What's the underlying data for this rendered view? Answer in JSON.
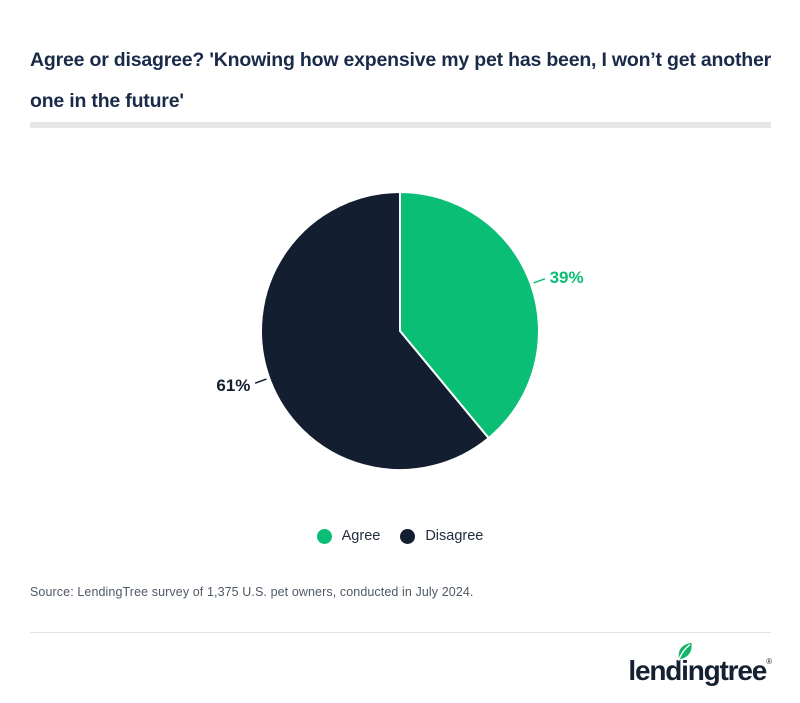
{
  "title": {
    "line1": "Agree or disagree? 'Knowing how expensive my pet has been, I won’t get another",
    "line2": "one in the future'"
  },
  "chart_data": {
    "type": "pie",
    "title": "Agree or disagree? 'Knowing how expensive my pet has been, I won’t get another one in the future'",
    "categories": [
      "Agree",
      "Disagree"
    ],
    "values": [
      39,
      61
    ],
    "labels": [
      "39%",
      "61%"
    ],
    "colors": [
      "#0bbe75",
      "#131f30"
    ],
    "legend_position": "bottom",
    "start_angle_deg": 0,
    "direction": "clockwise"
  },
  "source": "Source: LendingTree survey of 1,375 U.S. pet owners, conducted in July 2024.",
  "footer": {
    "logo_text": "lendingtree",
    "logo_trademark": "®"
  },
  "colors": {
    "title_navy": "#1a2b49",
    "accent_green": "#0bbe75",
    "dark_navy": "#131f30",
    "source_gray": "#4f5a66",
    "divider_gray": "#e7e7e7"
  }
}
